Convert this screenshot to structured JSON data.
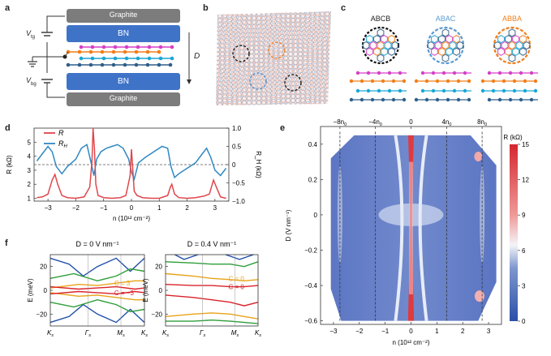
{
  "panels": {
    "a": "a",
    "b": "b",
    "c": "c",
    "d": "d",
    "e": "e",
    "f": "f"
  },
  "panel_a": {
    "top_layer": "Graphite",
    "upper_bn": "BN",
    "lower_bn": "BN",
    "bottom_layer": "Graphite",
    "vtg": "V",
    "vtg_sub": "tg",
    "vbg": "V",
    "vbg_sub": "bg",
    "d_label": "D",
    "layer_colors": [
      "#d63fc7",
      "#f07f1a",
      "#1aa6d6",
      "#2f5f8a"
    ]
  },
  "panel_c": {
    "stackings": [
      {
        "name": "ABCB",
        "color": "#000000"
      },
      {
        "name": "ABAC",
        "color": "#5b9bd5"
      },
      {
        "name": "ABBA",
        "color": "#f07f1a"
      }
    ]
  },
  "chart_data": [
    {
      "id": "d",
      "type": "line",
      "xlabel": "n (10¹² cm⁻²)",
      "ylabel_left": "R (kΩ)",
      "ylabel_right": "R_H (kΩ)",
      "xlim": [
        -3.5,
        3.5
      ],
      "ylim_left": [
        0.8,
        6.0
      ],
      "ylim_right": [
        -1.0,
        1.0
      ],
      "xticks": [
        -3,
        -2,
        -1,
        0,
        1,
        2,
        3
      ],
      "yticks_left": [
        1,
        2,
        3,
        4,
        5
      ],
      "yticks_right": [
        "1.0",
        "0.5",
        "0",
        "-0.5",
        "-1.0"
      ],
      "legend": [
        "R",
        "R_H"
      ],
      "series": [
        {
          "name": "R",
          "color": "#e0464b",
          "x": [
            -3.4,
            -3.2,
            -3.0,
            -2.85,
            -2.75,
            -2.65,
            -2.5,
            -2.3,
            -2.0,
            -1.7,
            -1.5,
            -1.42,
            -1.38,
            -1.33,
            -1.28,
            -1.2,
            -1.0,
            -0.7,
            -0.4,
            -0.2,
            -0.05,
            0.0,
            0.05,
            0.1,
            0.2,
            0.4,
            0.7,
            1.0,
            1.3,
            1.4,
            1.45,
            1.55,
            1.7,
            2.0,
            2.3,
            2.6,
            2.8,
            2.95,
            3.05,
            3.2,
            3.4
          ],
          "y": [
            1.05,
            1.1,
            1.3,
            2.3,
            2.7,
            2.0,
            1.2,
            1.05,
            1.0,
            1.1,
            1.8,
            3.6,
            6.0,
            4.5,
            2.0,
            1.2,
            1.05,
            1.0,
            1.05,
            1.2,
            2.6,
            4.5,
            3.0,
            1.5,
            1.2,
            1.05,
            1.0,
            1.0,
            1.2,
            1.8,
            2.0,
            1.3,
            1.05,
            1.0,
            1.05,
            1.15,
            1.3,
            2.3,
            1.8,
            1.1,
            1.0
          ]
        },
        {
          "name": "R_H",
          "color": "#2f88c2",
          "x": [
            -3.4,
            -3.2,
            -3.0,
            -2.85,
            -2.7,
            -2.5,
            -2.3,
            -2.0,
            -1.8,
            -1.6,
            -1.45,
            -1.35,
            -1.25,
            -1.1,
            -0.9,
            -0.7,
            -0.5,
            -0.3,
            -0.1,
            0.0,
            0.1,
            0.25,
            0.5,
            0.8,
            1.1,
            1.3,
            1.42,
            1.55,
            1.7,
            2.0,
            2.3,
            2.55,
            2.7,
            2.85,
            3.0,
            3.2,
            3.4
          ],
          "y": [
            0.1,
            0.3,
            0.5,
            0.35,
            -0.05,
            -0.25,
            -0.05,
            0.15,
            0.45,
            0.55,
            0.05,
            -0.3,
            0.15,
            0.35,
            0.45,
            0.5,
            0.55,
            0.45,
            0.15,
            -0.2,
            -0.4,
            0.05,
            0.2,
            0.35,
            0.5,
            0.45,
            -0.05,
            -0.35,
            -0.25,
            -0.1,
            0.05,
            0.3,
            0.45,
            0.2,
            -0.15,
            -0.3,
            -0.1
          ]
        }
      ]
    },
    {
      "id": "e",
      "type": "heatmap",
      "xlabel": "n (10¹² cm⁻²)",
      "ylabel": "D (V nm⁻¹)",
      "xlim": [
        -3.5,
        3.5
      ],
      "ylim": [
        -0.62,
        0.5
      ],
      "xticks": [
        -3,
        -2,
        -1,
        0,
        1,
        2,
        3
      ],
      "yticks": [
        "0.4",
        "0.2",
        "0",
        "−0.2",
        "−0.4",
        "−0.6"
      ],
      "top_ticks": [
        {
          "label": "−8n",
          "sub": "0",
          "n": -2.75
        },
        {
          "label": "−4n",
          "sub": "0",
          "n": -1.38
        },
        {
          "label": "0",
          "sub": "",
          "n": 0
        },
        {
          "label": "4n",
          "sub": "0",
          "n": 1.38
        },
        {
          "label": "8n",
          "sub": "0",
          "n": 2.75
        }
      ],
      "colorbar_label": "R (kΩ)",
      "colorbar_ticks": [
        "15",
        "12",
        "9",
        "6",
        "3",
        "0"
      ],
      "colorbar_range": [
        0,
        15
      ]
    },
    {
      "id": "f_left",
      "type": "line",
      "title": "D = 0 V nm⁻¹",
      "ylabel": "E (meV)",
      "ylim": [
        -30,
        30
      ],
      "yticks": [
        "20",
        "0",
        "−20"
      ],
      "xticks": [
        "K",
        "Γ",
        "M",
        "K"
      ],
      "xtick_sub": "s",
      "annotations": [
        {
          "text": "C = 3",
          "color": "#e8a319"
        },
        {
          "text": "C = −3",
          "color": "#d9232a"
        }
      ]
    },
    {
      "id": "f_right",
      "type": "line",
      "title": "D = 0.4 V nm⁻¹",
      "ylabel": "E (meV)",
      "ylim": [
        -30,
        30
      ],
      "yticks": [
        "20",
        "0",
        "−20"
      ],
      "xticks": [
        "K",
        "Γ",
        "M",
        "K"
      ],
      "xtick_sub": "s",
      "annotations": [
        {
          "text": "C = 0",
          "color": "#e8a319"
        },
        {
          "text": "C = 0",
          "color": "#d9232a"
        }
      ]
    }
  ]
}
